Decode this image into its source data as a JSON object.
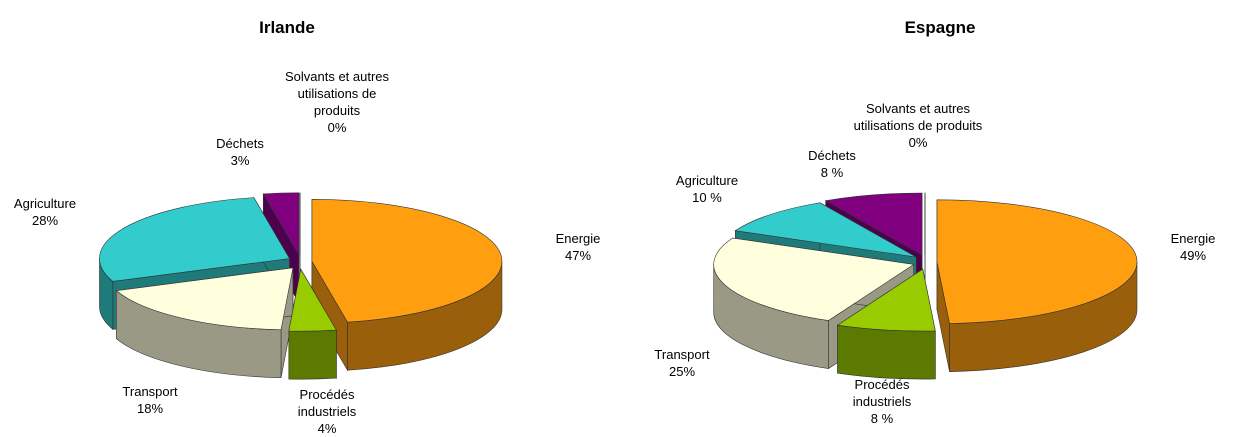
{
  "chart_data": [
    {
      "type": "pie3d",
      "title": "Irlande",
      "categories": [
        "Energie",
        "Procédés industriels",
        "Transport",
        "Agriculture",
        "Déchets",
        "Solvants et autres utilisations de produits"
      ],
      "values": [
        47,
        4,
        18,
        28,
        3,
        0
      ],
      "value_labels": [
        "47%",
        "4%",
        "18%",
        "28%",
        "3%",
        "0%"
      ],
      "colors": [
        "#ff9f10",
        "#99cc00",
        "#ffffdd",
        "#33cccc",
        "#800080",
        "#dddddd"
      ]
    },
    {
      "type": "pie3d",
      "title": "Espagne",
      "categories": [
        "Energie",
        "Procédés industriels",
        "Transport",
        "Agriculture",
        "Déchets",
        "Solvants et autres utilisations de produits"
      ],
      "values": [
        49,
        8,
        25,
        10,
        8,
        0
      ],
      "value_labels": [
        "49%",
        "8 %",
        "25%",
        "10 %",
        "8 %",
        "0%"
      ],
      "colors": [
        "#ff9f10",
        "#99cc00",
        "#ffffdd",
        "#33cccc",
        "#800080",
        "#dddddd"
      ]
    }
  ]
}
